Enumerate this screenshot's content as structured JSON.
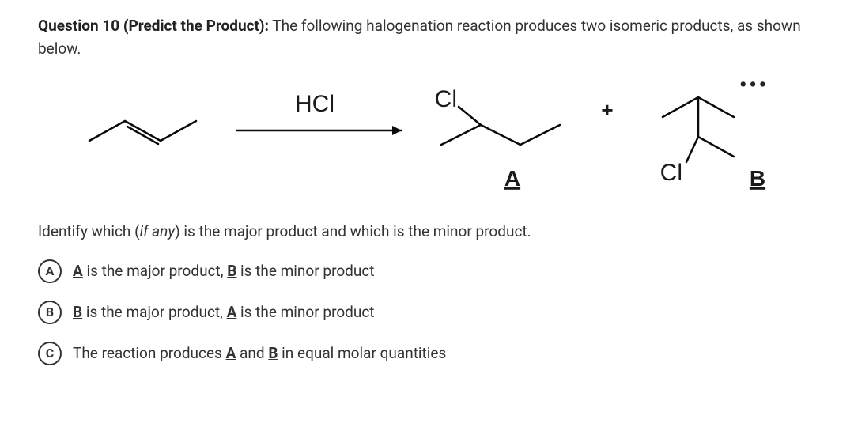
{
  "question": {
    "number_label": "Question 10 (Predict the Product):",
    "prompt_tail": " The following halogenation reaction produces two isomeric products, as shown below."
  },
  "reaction": {
    "reagent_label": "HCl",
    "cl_label": "Cl",
    "plus_label": "+",
    "product_a_label": "A",
    "product_b_label": "B",
    "ellipsis": "•••",
    "colors": {
      "stroke": "#0a0a0a",
      "text": "#1a1a1a"
    },
    "line_width": 2.5
  },
  "subprompt": {
    "before_if": "Identify which (",
    "if_any": "if any",
    "after_if": ") is the major product and which is the minor product."
  },
  "choices": [
    {
      "letter": "A",
      "html": "<span class=\"u-bold\">A</span> is the major product, <span class=\"u-bold\">B</span> is the minor product"
    },
    {
      "letter": "B",
      "html": "<span class=\"u-bold\">B</span> is the major product, <span class=\"u-bold\">A</span> is the minor product"
    },
    {
      "letter": "C",
      "html": "The reaction produces <span class=\"u-bold\">A</span> and <span class=\"u-bold\">B</span> in equal molar quantities"
    }
  ],
  "style": {
    "choice_border_color": "#343434",
    "text_color": "#333333",
    "font_size_body": 19
  }
}
